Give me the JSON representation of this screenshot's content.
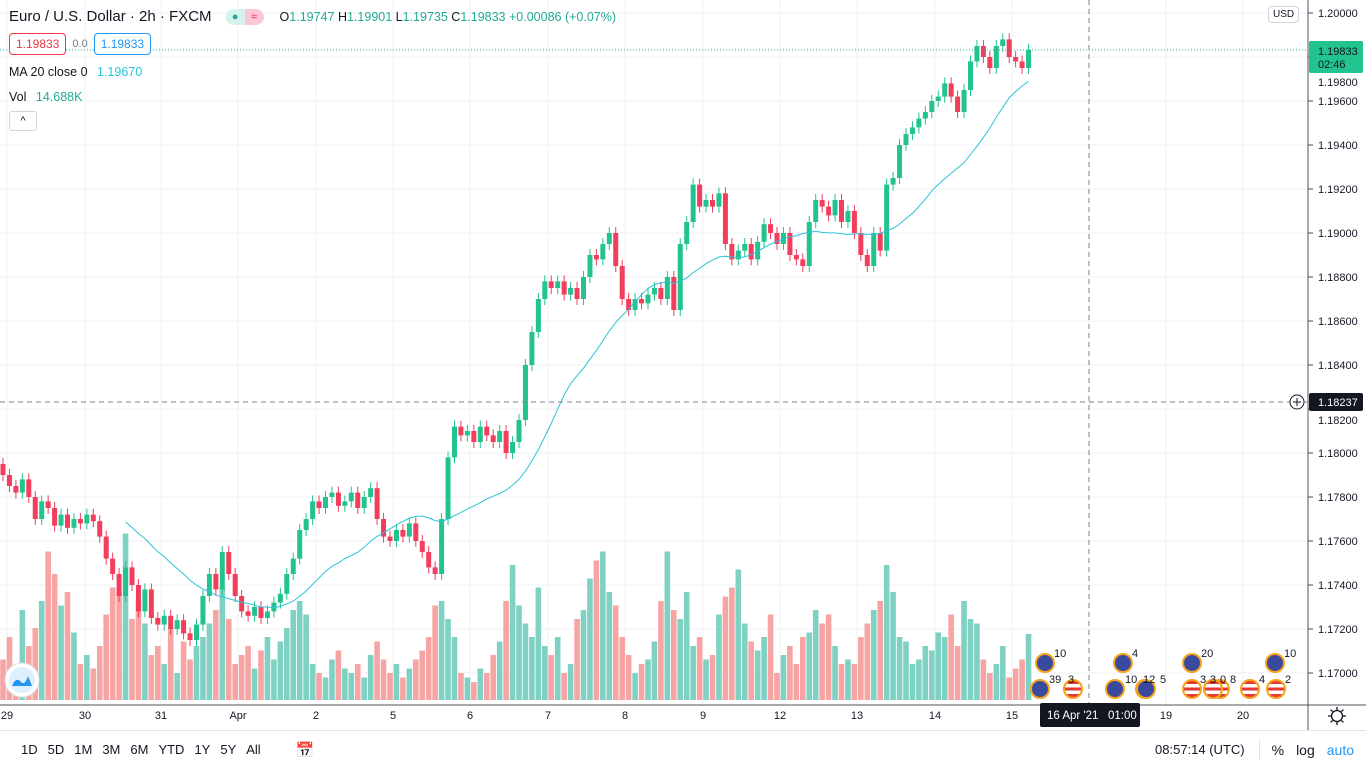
{
  "header": {
    "symbol_title": "Euro / U.S. Dollar · 2h · FXCM",
    "open_label": "O",
    "open": "1.19747",
    "high_label": "H",
    "high": "1.19901",
    "low_label": "L",
    "low": "1.19735",
    "close_label": "C",
    "close": "1.19833",
    "change": "+0.00086 (+0.07%)",
    "sell_price": "1.19833",
    "spread": "0.0",
    "buy_price": "1.19833",
    "market_status_icon": "dot-icon",
    "market_wave_icon": "≈"
  },
  "indicators": {
    "ma_label": "MA 20 close 0",
    "ma_value": "1.19670",
    "vol_label": "Vol",
    "vol_value": "14.688K",
    "collapse_icon": "^"
  },
  "price_axis": {
    "currency": "USD",
    "ticks": [
      "1.20000",
      "1.19800",
      "1.19600",
      "1.19400",
      "1.19200",
      "1.19000",
      "1.18800",
      "1.18600",
      "1.18400",
      "1.18200",
      "1.18000",
      "1.17800",
      "1.17600",
      "1.17400",
      "1.17200",
      "1.17000"
    ],
    "last_price": "1.19833",
    "countdown": "02:46",
    "crosshair_price": "1.18237"
  },
  "time_axis": {
    "ticks": [
      "29",
      "30",
      "31",
      "Apr",
      "2",
      "5",
      "6",
      "7",
      "8",
      "9",
      "12",
      "13",
      "14",
      "15",
      "19",
      "20"
    ],
    "crosshair_time": "16 Apr '21   01:00"
  },
  "events": [
    "10",
    "39",
    "3",
    "4",
    "10",
    "12",
    "5",
    "20",
    "3",
    "3",
    "0",
    "8",
    "10",
    "4",
    "2"
  ],
  "bottom_bar": {
    "ranges": [
      "1D",
      "5D",
      "1M",
      "3M",
      "6M",
      "YTD",
      "1Y",
      "5Y",
      "All"
    ],
    "clock": "08:57:14 (UTC)",
    "percent": "%",
    "log": "log",
    "auto": "auto"
  },
  "colors": {
    "up": "#26a69a",
    "down": "#ef5350",
    "up_candle": "#22c38e",
    "down_candle": "#f23d5c",
    "ma": "#2bc3d8",
    "accent": "#2196f3"
  },
  "chart_data": {
    "type": "candlestick",
    "interval": "2h",
    "ylim": [
      1.169,
      1.2003
    ],
    "first_open": 1.1795,
    "close": [
      1.179,
      1.1785,
      1.1782,
      1.1788,
      1.178,
      1.177,
      1.1778,
      1.1775,
      1.1767,
      1.1772,
      1.1766,
      1.177,
      1.1768,
      1.1772,
      1.1769,
      1.1762,
      1.1752,
      1.1745,
      1.1735,
      1.1748,
      1.174,
      1.1728,
      1.1738,
      1.1725,
      1.1722,
      1.1726,
      1.172,
      1.1724,
      1.1718,
      1.1715,
      1.1722,
      1.1735,
      1.1745,
      1.1738,
      1.1755,
      1.1745,
      1.1735,
      1.1728,
      1.1726,
      1.173,
      1.1725,
      1.1728,
      1.1732,
      1.1736,
      1.1745,
      1.1752,
      1.1765,
      1.177,
      1.1778,
      1.1775,
      1.178,
      1.1782,
      1.1776,
      1.1778,
      1.1782,
      1.1775,
      1.178,
      1.1784,
      1.177,
      1.1762,
      1.176,
      1.1765,
      1.1762,
      1.1768,
      1.176,
      1.1755,
      1.1748,
      1.1745,
      1.177,
      1.1798,
      1.1812,
      1.1808,
      1.181,
      1.1805,
      1.1812,
      1.1808,
      1.1805,
      1.181,
      1.18,
      1.1805,
      1.1815,
      1.184,
      1.1855,
      1.187,
      1.1878,
      1.1875,
      1.1878,
      1.1872,
      1.1875,
      1.187,
      1.188,
      1.189,
      1.1888,
      1.1895,
      1.19,
      1.1885,
      1.187,
      1.1865,
      1.187,
      1.1868,
      1.1872,
      1.1875,
      1.187,
      1.188,
      1.1865,
      1.1895,
      1.1905,
      1.1922,
      1.1912,
      1.1915,
      1.1912,
      1.1918,
      1.1895,
      1.1888,
      1.1892,
      1.1895,
      1.1888,
      1.1896,
      1.1904,
      1.19,
      1.1895,
      1.19,
      1.189,
      1.1888,
      1.1885,
      1.1905,
      1.1915,
      1.1912,
      1.1908,
      1.1915,
      1.1905,
      1.191,
      1.19,
      1.189,
      1.1885,
      1.19,
      1.1892,
      1.1922,
      1.1925,
      1.194,
      1.1945,
      1.1948,
      1.1952,
      1.1955,
      1.196,
      1.1962,
      1.1968,
      1.1962,
      1.1955,
      1.1965,
      1.1978,
      1.1985,
      1.198,
      1.1975,
      1.1985,
      1.1988,
      1.198,
      1.1978,
      1.1975,
      1.19833
    ],
    "volume_k": [
      9,
      14,
      6,
      20,
      12,
      16,
      22,
      33,
      28,
      21,
      24,
      15,
      8,
      10,
      7,
      12,
      19,
      25,
      24,
      37,
      18,
      22,
      17,
      10,
      12,
      8,
      16,
      6,
      13,
      9,
      12,
      14,
      17,
      20,
      25,
      18,
      8,
      10,
      12,
      7,
      11,
      14,
      9,
      13,
      16,
      20,
      22,
      19,
      8,
      6,
      5,
      9,
      11,
      7,
      6,
      8,
      5,
      10,
      13,
      9,
      6,
      8,
      5,
      7,
      9,
      11,
      14,
      21,
      22,
      18,
      14,
      6,
      5,
      4,
      7,
      6,
      10,
      13,
      22,
      30,
      21,
      17,
      14,
      25,
      12,
      10,
      14,
      6,
      8,
      18,
      20,
      27,
      31,
      33,
      24,
      21,
      14,
      10,
      6,
      8,
      9,
      13,
      22,
      33,
      20,
      18,
      24,
      12,
      14,
      9,
      10,
      19,
      23,
      25,
      29,
      17,
      13,
      11,
      14,
      19,
      6,
      10,
      12,
      8,
      14,
      15,
      20,
      17,
      19,
      12,
      8,
      9,
      8,
      14,
      17,
      20,
      22,
      30,
      24,
      14,
      13,
      8,
      9,
      12,
      11,
      15,
      14,
      19,
      12,
      22,
      18,
      17,
      9,
      6,
      8,
      12,
      5,
      7,
      9,
      14.688
    ],
    "ma_period": 20
  }
}
